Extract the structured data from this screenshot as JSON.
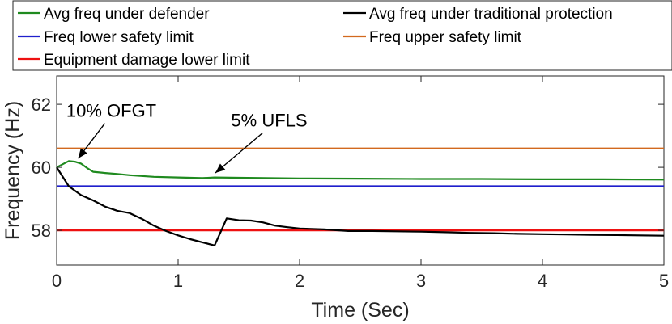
{
  "chart_data": {
    "type": "line",
    "xlabel": "Time (Sec)",
    "ylabel": "Frequency (Hz)",
    "xlim": [
      0,
      5
    ],
    "ylim": [
      56.9,
      62.9
    ],
    "xticks": [
      "0",
      "1",
      "2",
      "3",
      "4",
      "5"
    ],
    "yticks": [
      "58",
      "60",
      "62"
    ],
    "legend_position": "top",
    "grid": false,
    "series": [
      {
        "name": "Avg freq under defender",
        "color": "#1f8a1f",
        "x": [
          0,
          0.05,
          0.1,
          0.15,
          0.2,
          0.25,
          0.3,
          0.4,
          0.5,
          0.6,
          0.8,
          1.0,
          1.2,
          1.3,
          1.5,
          2.0,
          2.5,
          3.0,
          3.5,
          4.0,
          4.5,
          5.0
        ],
        "y": [
          60.0,
          60.1,
          60.2,
          60.18,
          60.12,
          59.98,
          59.86,
          59.82,
          59.79,
          59.75,
          59.7,
          59.68,
          59.66,
          59.68,
          59.67,
          59.65,
          59.64,
          59.63,
          59.63,
          59.62,
          59.62,
          59.61
        ]
      },
      {
        "name": "Avg freq under traditional protection",
        "color": "#000000",
        "x": [
          0,
          0.1,
          0.2,
          0.3,
          0.4,
          0.5,
          0.6,
          0.7,
          0.8,
          0.9,
          1.0,
          1.1,
          1.2,
          1.3,
          1.4,
          1.5,
          1.6,
          1.7,
          1.8,
          1.9,
          2.0,
          2.2,
          2.4,
          2.6,
          2.8,
          3.0,
          3.2,
          3.4,
          3.6,
          3.8,
          4.0,
          4.2,
          4.4,
          4.6,
          4.8,
          5.0
        ],
        "y": [
          60.0,
          59.4,
          59.12,
          58.95,
          58.75,
          58.62,
          58.55,
          58.37,
          58.15,
          57.98,
          57.84,
          57.72,
          57.62,
          57.52,
          58.38,
          58.32,
          58.31,
          58.25,
          58.15,
          58.1,
          58.06,
          58.03,
          57.98,
          57.98,
          57.97,
          57.96,
          57.94,
          57.92,
          57.91,
          57.89,
          57.88,
          57.87,
          57.86,
          57.85,
          57.84,
          57.83
        ]
      },
      {
        "name": "Freq lower safety limit",
        "color": "#1f1fcc",
        "x": [
          0,
          5
        ],
        "y": [
          59.4,
          59.4
        ]
      },
      {
        "name": "Freq upper safety limit",
        "color": "#d2691e",
        "x": [
          0,
          5
        ],
        "y": [
          60.6,
          60.6
        ]
      },
      {
        "name": "Equipment damage lower limit",
        "color": "#ee1111",
        "x": [
          0,
          5
        ],
        "y": [
          58.0,
          58.0
        ]
      }
    ],
    "annotations": [
      {
        "text": "10% OFGT",
        "arrow_to": [
          0.15,
          60.18
        ],
        "text_at": [
          0.45,
          61.6
        ]
      },
      {
        "text": "5% UFLS",
        "arrow_to": [
          1.28,
          59.72
        ],
        "text_at": [
          1.75,
          61.3
        ]
      }
    ]
  }
}
